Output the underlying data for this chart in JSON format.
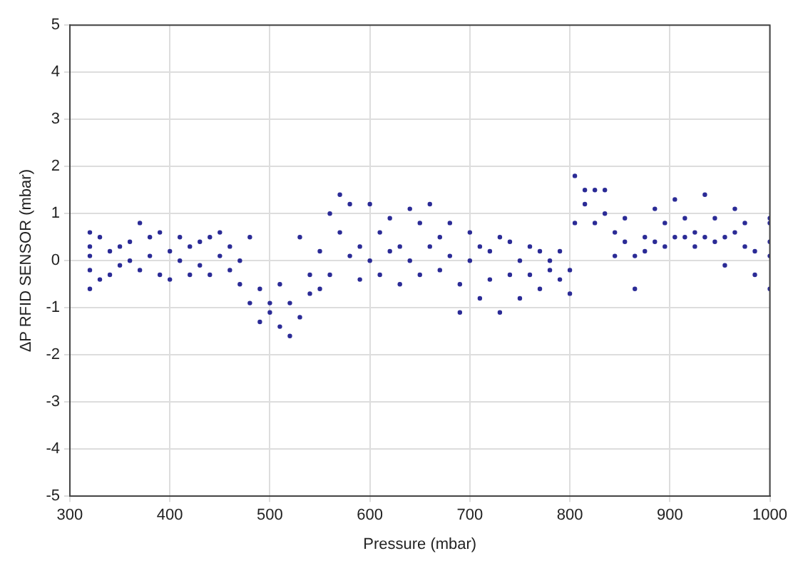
{
  "chart_data": {
    "type": "scatter",
    "xlabel": "Pressure (mbar)",
    "ylabel": "ΔP RFID SENSOR (mbar)",
    "xlim": [
      300,
      1000
    ],
    "xticks": [
      300,
      400,
      500,
      600,
      700,
      800,
      900,
      1000
    ],
    "ylim": [
      -5,
      5
    ],
    "yticks": [
      -5,
      -4,
      -3,
      -2,
      -1,
      0,
      1,
      2,
      3,
      4,
      5
    ],
    "grid": true,
    "legend": false,
    "marker": "circle",
    "series": [
      {
        "color": "#2b2b96",
        "x": [
          320,
          320,
          320,
          320,
          320,
          330,
          330,
          340,
          340,
          350,
          350,
          360,
          360,
          370,
          370,
          380,
          380,
          390,
          390,
          400,
          400,
          410,
          410,
          420,
          420,
          430,
          430,
          440,
          440,
          450,
          450,
          460,
          460,
          470,
          470,
          480,
          480,
          490,
          490,
          500,
          500,
          510,
          510,
          520,
          520,
          530,
          530,
          540,
          540,
          550,
          550,
          560,
          560,
          570,
          570,
          580,
          580,
          590,
          590,
          600,
          600,
          610,
          610,
          620,
          620,
          630,
          630,
          640,
          640,
          650,
          650,
          660,
          660,
          670,
          670,
          680,
          680,
          690,
          690,
          700,
          700,
          710,
          710,
          720,
          720,
          730,
          730,
          740,
          740,
          750,
          750,
          760,
          760,
          770,
          770,
          780,
          780,
          790,
          790,
          800,
          800,
          805,
          805,
          815,
          815,
          825,
          825,
          835,
          835,
          845,
          845,
          855,
          855,
          865,
          865,
          875,
          875,
          885,
          885,
          895,
          895,
          905,
          905,
          915,
          915,
          925,
          925,
          935,
          935,
          945,
          945,
          955,
          955,
          965,
          965,
          975,
          975,
          985,
          985,
          1000,
          1000,
          1000,
          1000,
          1000
        ],
        "values": [
          0.6,
          0.3,
          -0.2,
          -0.6,
          0.1,
          0.5,
          -0.4,
          0.2,
          -0.3,
          0.3,
          -0.1,
          0.0,
          0.4,
          0.8,
          -0.2,
          0.5,
          0.1,
          0.6,
          -0.3,
          0.2,
          -0.4,
          0.5,
          0.0,
          0.3,
          -0.3,
          0.4,
          -0.1,
          0.5,
          -0.3,
          0.6,
          0.1,
          0.3,
          -0.2,
          0.0,
          -0.5,
          0.5,
          -0.9,
          -0.6,
          -1.3,
          -0.9,
          -1.1,
          -0.5,
          -1.4,
          -0.9,
          -1.6,
          -1.2,
          0.5,
          -0.7,
          -0.3,
          -0.6,
          0.2,
          1.0,
          -0.3,
          1.4,
          0.6,
          0.1,
          1.2,
          -0.4,
          0.3,
          1.2,
          0.0,
          0.6,
          -0.3,
          0.9,
          0.2,
          -0.5,
          0.3,
          1.1,
          0.0,
          0.8,
          -0.3,
          1.2,
          0.3,
          -0.2,
          0.5,
          0.8,
          0.1,
          -1.1,
          -0.5,
          0.6,
          0.0,
          -0.8,
          0.3,
          0.2,
          -0.4,
          -1.1,
          0.5,
          -0.3,
          0.4,
          -0.8,
          0.0,
          -0.3,
          0.3,
          0.2,
          -0.6,
          -0.2,
          0.0,
          -0.4,
          0.2,
          -0.7,
          -0.2,
          1.8,
          0.8,
          1.5,
          1.2,
          1.5,
          0.8,
          1.5,
          1.0,
          0.6,
          0.1,
          0.9,
          0.4,
          -0.6,
          0.1,
          0.5,
          0.2,
          1.1,
          0.4,
          0.8,
          0.3,
          1.3,
          0.5,
          0.5,
          0.9,
          0.6,
          0.3,
          1.4,
          0.5,
          0.4,
          0.9,
          -0.1,
          0.5,
          1.1,
          0.6,
          0.3,
          0.8,
          0.2,
          -0.3,
          0.8,
          0.1,
          -0.6,
          0.4,
          0.9
        ]
      }
    ]
  }
}
